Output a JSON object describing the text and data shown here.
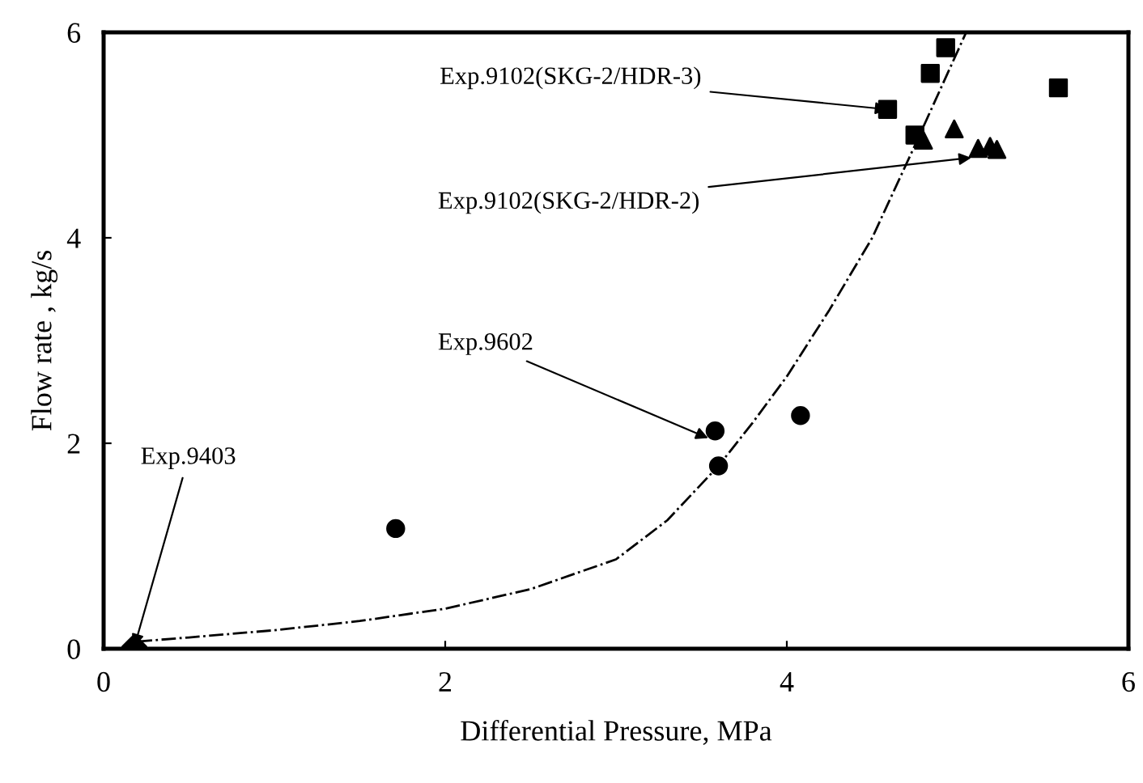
{
  "chart_data": {
    "type": "scatter",
    "xlabel": "Differential Pressure, MPa",
    "ylabel": "Flow rate , kg/s",
    "xlim": [
      0,
      6
    ],
    "ylim": [
      0,
      6
    ],
    "xticks": [
      0,
      2,
      4,
      6
    ],
    "yticks": [
      0,
      2,
      4,
      6
    ],
    "grid": false,
    "legend": false,
    "series": [
      {
        "color": "#000000",
        "marker": "diamond",
        "x": [
          0.18
        ],
        "values": [
          0.02
        ]
      },
      {
        "color": "#000000",
        "marker": "circle",
        "x": [
          1.71,
          3.58,
          3.6,
          4.08
        ],
        "values": [
          1.17,
          2.12,
          1.78,
          2.27
        ]
      },
      {
        "color": "#000000",
        "marker": "square",
        "x": [
          4.93,
          4.84,
          4.59,
          4.75,
          5.59
        ],
        "values": [
          5.85,
          5.6,
          5.25,
          5.0,
          5.46
        ]
      },
      {
        "color": "#000000",
        "marker": "triangle",
        "x": [
          4.8,
          4.98,
          5.12,
          5.19,
          5.23
        ],
        "values": [
          4.95,
          5.06,
          4.87,
          4.89,
          4.86
        ]
      },
      {
        "type": "line",
        "color": "#000000",
        "marker": "none",
        "line_style": "dashed",
        "x": [
          0.2,
          0.5,
          1,
          1.5,
          2,
          2.5,
          3,
          3.3,
          3.6,
          3.8,
          4,
          4.25,
          4.5,
          4.75,
          4.9,
          5.05
        ],
        "values": [
          0.07,
          0.11,
          0.18,
          0.27,
          0.39,
          0.58,
          0.87,
          1.25,
          1.78,
          2.2,
          2.65,
          3.3,
          4.0,
          4.9,
          5.45,
          6.0
        ]
      }
    ],
    "annotations": [
      {
        "text": "Exp.9403",
        "x": 0.18,
        "y": 0.02
      },
      {
        "text": "Exp.9602",
        "x": 3.54,
        "y": 2.05
      },
      {
        "text": "Exp.9102(SKG-2/HDR-3)",
        "x": 4.59,
        "y": 5.25
      },
      {
        "text": "Exp.9102(SKG-2/HDR-2)",
        "x": 5.08,
        "y": 4.78
      }
    ]
  }
}
